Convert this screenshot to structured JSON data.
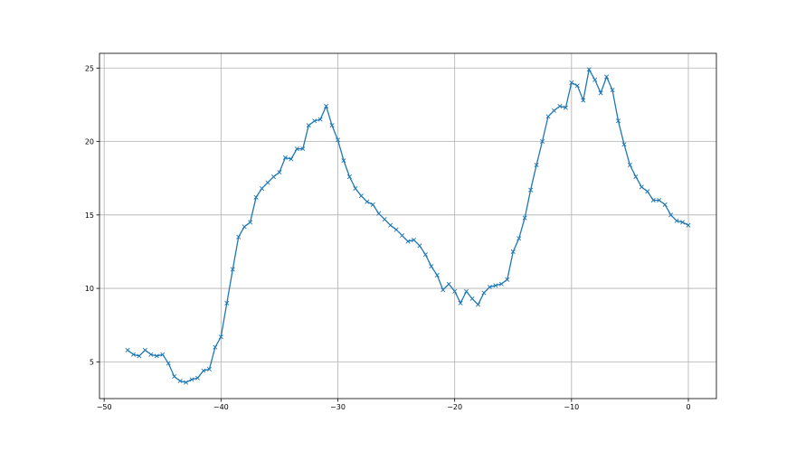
{
  "chart_data": {
    "type": "line",
    "title": "",
    "xlabel": "",
    "ylabel": "",
    "xlim": [
      -50.4,
      2.4
    ],
    "ylim": [
      2.5,
      26
    ],
    "grid": true,
    "marker": "x",
    "color": "#1f77b4",
    "x_ticks": [
      -50,
      -40,
      -30,
      -20,
      -10,
      0
    ],
    "x_tick_labels": [
      "−50",
      "−40",
      "−30",
      "−20",
      "−10",
      "0"
    ],
    "y_ticks": [
      5,
      10,
      15,
      20,
      25
    ],
    "y_tick_labels": [
      "5",
      "10",
      "15",
      "20",
      "25"
    ],
    "series": [
      {
        "x": [
          -48,
          -47.5,
          -47,
          -46.5,
          -46,
          -45.5,
          -45,
          -44.5,
          -44,
          -43.5,
          -43,
          -42.5,
          -42,
          -41.5,
          -41,
          -40.5,
          -40,
          -39.5,
          -39,
          -38.5,
          -38,
          -37.5,
          -37,
          -36.5,
          -36,
          -35.5,
          -35,
          -34.5,
          -34,
          -33.5,
          -33,
          -32.5,
          -32,
          -31.5,
          -31,
          -30.5,
          -30,
          -29.5,
          -29,
          -28.5,
          -28,
          -27.5,
          -27,
          -26.5,
          -26,
          -25.5,
          -25,
          -24.5,
          -24,
          -23.5,
          -23,
          -22.5,
          -22,
          -21.5,
          -21,
          -20.5,
          -20,
          -19.5,
          -19,
          -18.5,
          -18,
          -17.5,
          -17,
          -16.5,
          -16,
          -15.5,
          -15,
          -14.5,
          -14,
          -13.5,
          -13,
          -12.5,
          -12,
          -11.5,
          -11,
          -10.5,
          -10,
          -9.5,
          -9,
          -8.5,
          -8,
          -7.5,
          -7,
          -6.5,
          -6,
          -5.5,
          -5,
          -4.5,
          -4,
          -3.5,
          -3,
          -2.5,
          -2,
          -1.5,
          -1,
          -0.5,
          0
        ],
        "y": [
          5.8,
          5.5,
          5.4,
          5.8,
          5.5,
          5.4,
          5.5,
          4.9,
          4.0,
          3.7,
          3.6,
          3.8,
          3.9,
          4.4,
          4.5,
          6.0,
          6.7,
          9.0,
          11.3,
          13.5,
          14.2,
          14.5,
          16.2,
          16.8,
          17.2,
          17.6,
          17.9,
          18.9,
          18.8,
          19.5,
          19.5,
          21.1,
          21.4,
          21.5,
          22.4,
          21.1,
          20.1,
          18.7,
          17.6,
          16.8,
          16.3,
          15.9,
          15.7,
          15.1,
          14.7,
          14.3,
          14.0,
          13.6,
          13.2,
          13.3,
          12.9,
          12.3,
          11.5,
          10.9,
          9.9,
          10.3,
          9.8,
          9.0,
          9.8,
          9.3,
          8.9,
          9.7,
          10.1,
          10.2,
          10.3,
          10.6,
          12.5,
          13.4,
          14.8,
          16.7,
          18.4,
          20.0,
          21.7,
          22.1,
          22.4,
          22.3,
          24.0,
          23.8,
          22.8,
          24.9,
          24.2,
          23.3,
          24.4,
          23.5,
          21.4,
          19.8,
          18.4,
          17.6,
          16.9,
          16.6,
          16.0,
          16.0,
          15.7,
          15.0,
          14.6,
          14.5,
          14.3
        ]
      }
    ]
  }
}
